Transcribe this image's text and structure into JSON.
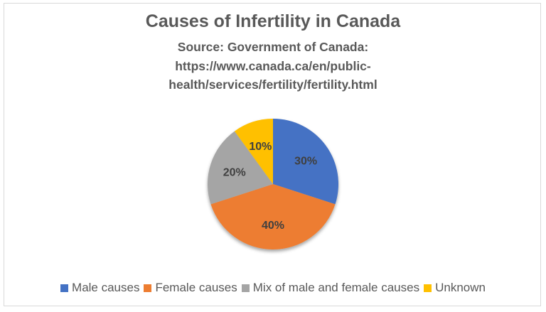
{
  "title": "Causes of Infertility in Canada",
  "subtitle_lines": [
    "Source: Government of Canada:",
    "https://www.canada.ca/en/public-",
    "health/services/fertility/fertility.html"
  ],
  "chart_data": {
    "type": "pie",
    "title": "Causes of Infertility in Canada",
    "subtitle": "Source: Government of Canada: https://www.canada.ca/en/public-health/services/fertility/fertility.html",
    "categories": [
      "Male causes",
      "Female causes",
      "Mix of male and female causes",
      "Unknown"
    ],
    "values": [
      30,
      40,
      20,
      10
    ],
    "labels": [
      "30%",
      "40%",
      "20%",
      "10%"
    ],
    "colors": [
      "#4472c4",
      "#ed7d31",
      "#a5a5a5",
      "#ffc000"
    ],
    "legend_position": "bottom"
  },
  "legend": [
    {
      "label": "Male causes",
      "color": "#4472c4"
    },
    {
      "label": "Female causes",
      "color": "#ed7d31"
    },
    {
      "label": "Mix of male and female causes",
      "color": "#a5a5a5"
    },
    {
      "label": "Unknown",
      "color": "#ffc000"
    }
  ]
}
